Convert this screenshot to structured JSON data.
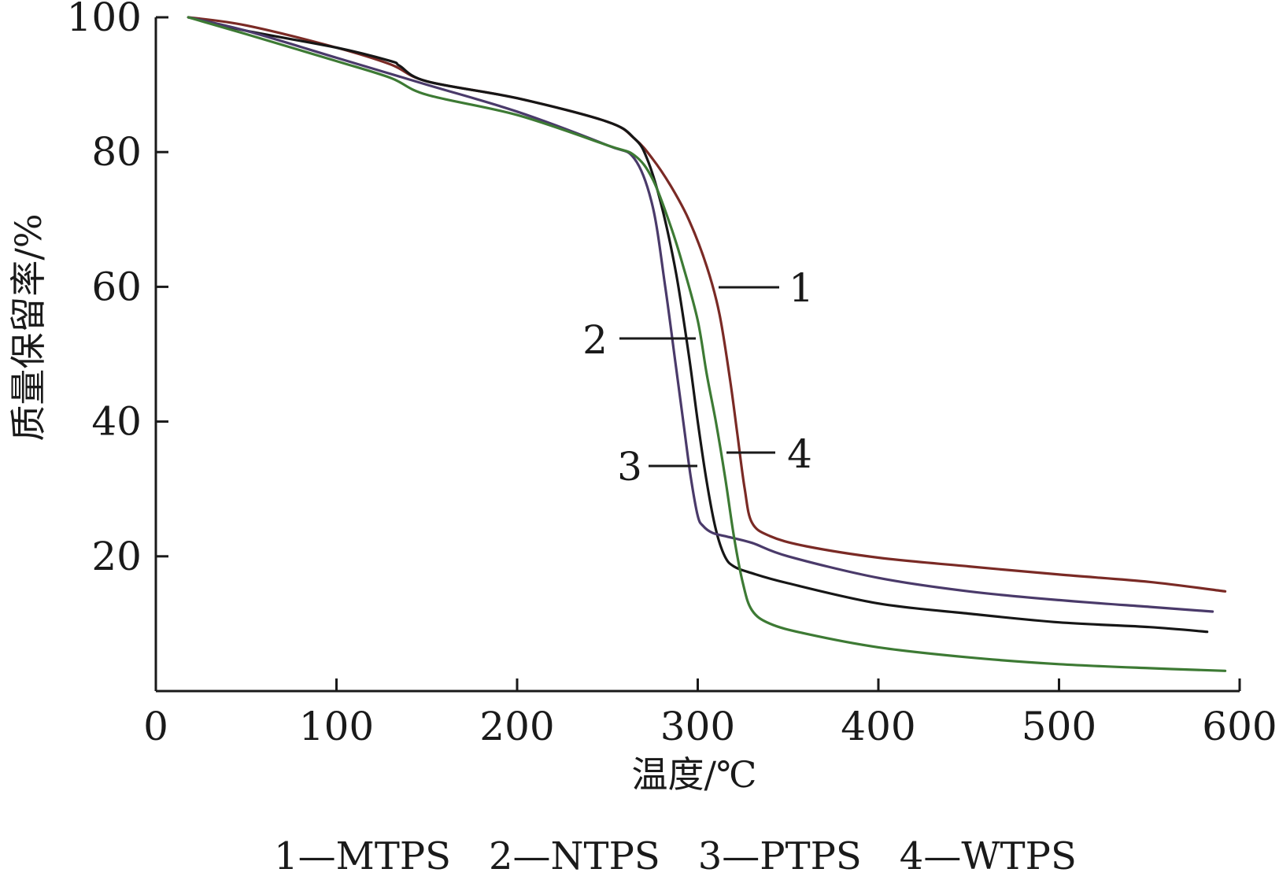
{
  "chart_data": {
    "type": "line",
    "title": "",
    "xlabel": "温度/℃",
    "ylabel": "质量保留率/%",
    "xlim": [
      0,
      600
    ],
    "ylim": [
      0,
      100
    ],
    "x_ticks": [
      0,
      100,
      200,
      300,
      400,
      500,
      600
    ],
    "y_ticks": [
      20,
      40,
      60,
      80,
      100
    ],
    "grid": false,
    "legend_position": "bottom",
    "legend_text": "1—MTPS　2—NTPS　3—PTPS　4—WTPS",
    "series": [
      {
        "name": "MTPS",
        "label": "1",
        "color": "#7a2a25",
        "x": [
          18,
          50,
          100,
          130,
          150,
          200,
          250,
          265,
          275,
          285,
          295,
          305,
          312,
          318,
          322,
          326,
          330,
          340,
          360,
          400,
          450,
          500,
          550,
          592
        ],
        "y": [
          100,
          98.8,
          95.5,
          93,
          90.5,
          88,
          84.5,
          82,
          79,
          75,
          70,
          63,
          56,
          46,
          38,
          30,
          25,
          23,
          21.5,
          19.8,
          18.5,
          17.3,
          16.2,
          14.8
        ]
      },
      {
        "name": "NTPS",
        "label": "2",
        "color": "#161616",
        "x": [
          18,
          50,
          100,
          130,
          135,
          150,
          200,
          250,
          265,
          272,
          280,
          288,
          295,
          300,
          305,
          310,
          315,
          320,
          330,
          350,
          400,
          450,
          500,
          550,
          582
        ],
        "y": [
          100,
          98,
          95.5,
          93.5,
          92.8,
          90.5,
          88,
          84.5,
          82,
          79,
          72,
          62,
          50,
          40,
          31,
          24,
          20,
          18.5,
          17.5,
          16,
          13,
          11.5,
          10.2,
          9.5,
          8.8
        ]
      },
      {
        "name": "PTPS",
        "label": "3",
        "color": "#4a3a6a",
        "x": [
          18,
          50,
          100,
          150,
          200,
          250,
          265,
          275,
          282,
          288,
          292,
          296,
          300,
          303,
          308,
          315,
          330,
          350,
          400,
          450,
          500,
          550,
          585
        ],
        "y": [
          100,
          98,
          94,
          90,
          86,
          81,
          79,
          72,
          60,
          48,
          40,
          32,
          26,
          24.5,
          23.5,
          23,
          22,
          20,
          16.8,
          14.8,
          13.5,
          12.5,
          11.8
        ]
      },
      {
        "name": "WTPS",
        "label": "4",
        "color": "#3d7a34",
        "x": [
          18,
          50,
          100,
          130,
          150,
          200,
          250,
          265,
          275,
          285,
          292,
          300,
          305,
          310,
          315,
          320,
          325,
          330,
          340,
          360,
          400,
          450,
          500,
          550,
          592
        ],
        "y": [
          100,
          97.5,
          93.5,
          91,
          88.5,
          85.5,
          81,
          79.5,
          76,
          69,
          63,
          55,
          47,
          40,
          32,
          23,
          16,
          12,
          10,
          8.5,
          6.5,
          5,
          4,
          3.4,
          3
        ]
      }
    ],
    "callouts": [
      {
        "text": "1",
        "series": "MTPS"
      },
      {
        "text": "2",
        "series": "NTPS"
      },
      {
        "text": "3",
        "series": "PTPS"
      },
      {
        "text": "4",
        "series": "WTPS"
      }
    ]
  }
}
